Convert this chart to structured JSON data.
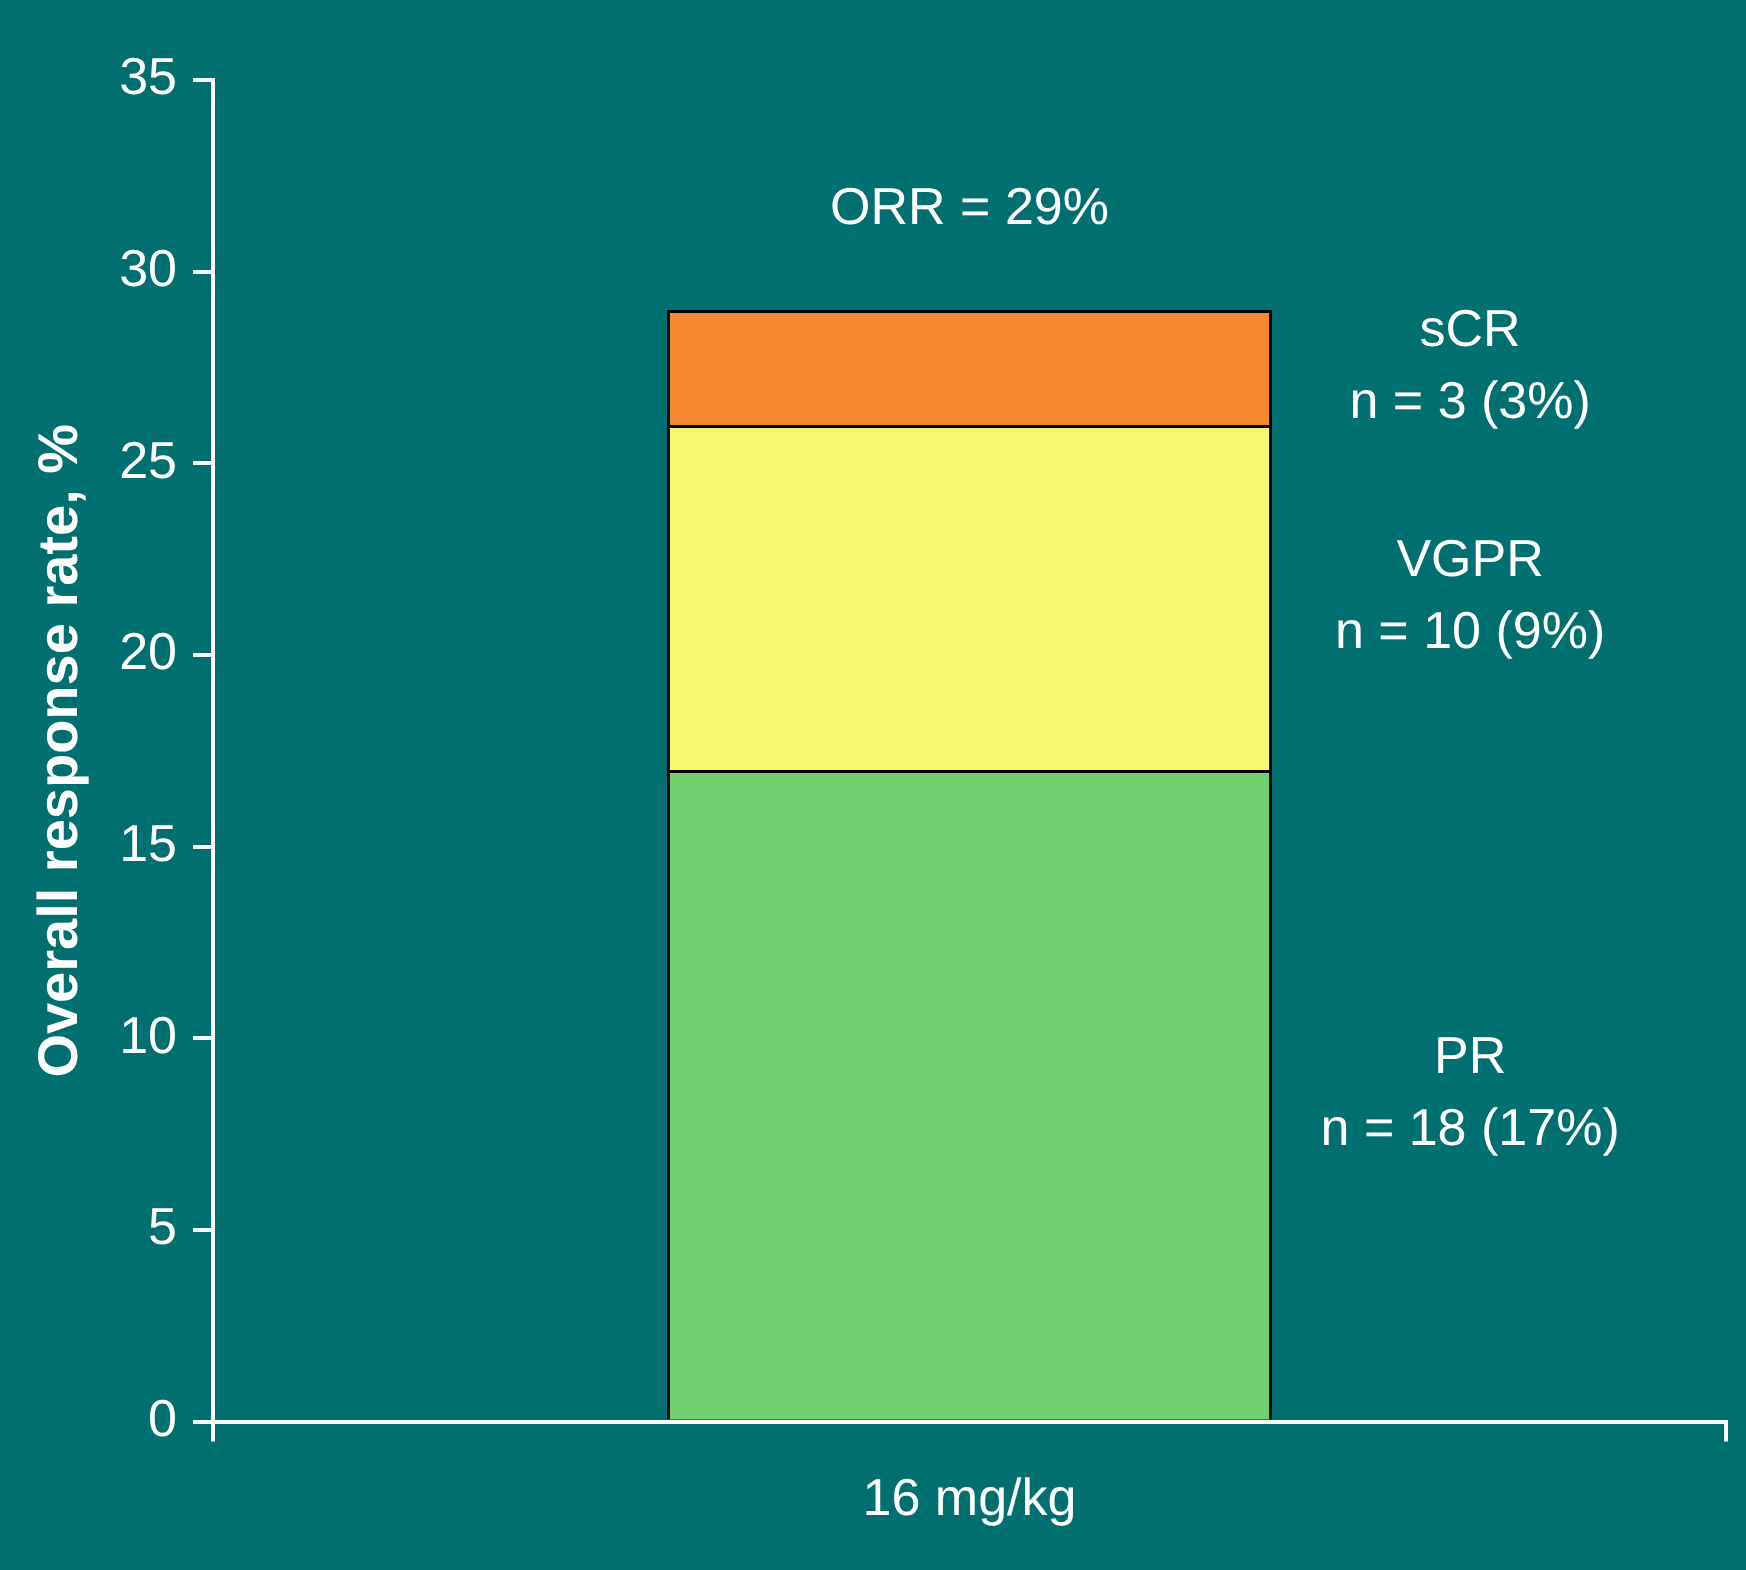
{
  "chart_data": {
    "type": "bar",
    "stacked": true,
    "ylabel": "Overall response rate, %",
    "categories": [
      "16 mg/kg"
    ],
    "series": [
      {
        "name": "PR",
        "color": "#70d070",
        "values": [
          17
        ]
      },
      {
        "name": "VGPR",
        "color": "#f8f870",
        "values": [
          9
        ]
      },
      {
        "name": "sCR",
        "color": "#f88830",
        "values": [
          3
        ]
      }
    ],
    "ylim": [
      0,
      35
    ],
    "yticks": [
      0,
      5,
      10,
      15,
      20,
      25,
      30,
      35
    ],
    "grid": false,
    "legend": false,
    "annotations": [
      {
        "text": "ORR = 29%",
        "x": "16 mg/kg",
        "y": 29
      },
      "n = 18 (17%)",
      "n = 10 (9%)",
      "n = 3 (3%)"
    ]
  }
}
